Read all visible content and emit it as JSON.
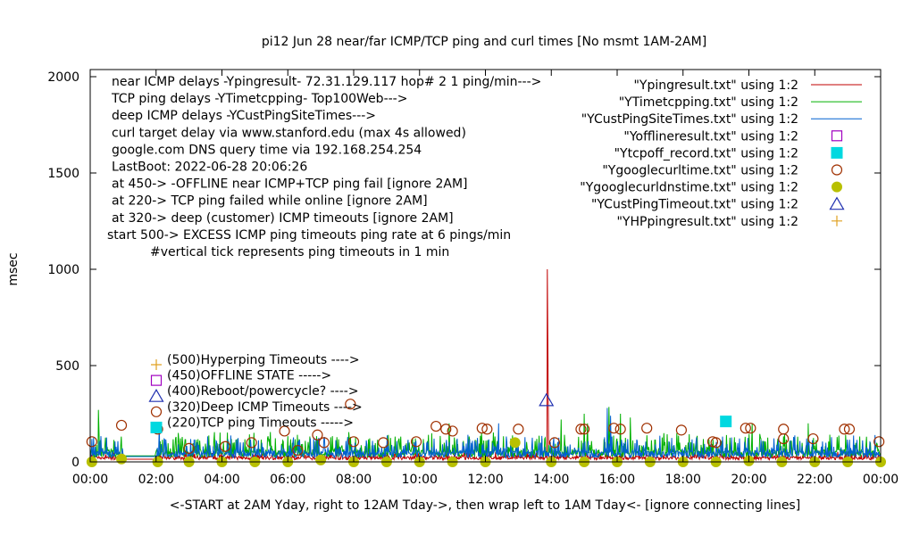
{
  "chart_data": {
    "type": "line",
    "title": "pi12 Jun 28  near/far ICMP/TCP ping and curl times [No msmt 1AM-2AM]",
    "xlabel": "<-START at 2AM Yday, right to 12AM Tday->, then wrap left to 1AM Tday<- [ignore connecting lines]",
    "ylabel": "msec",
    "x_ticks": [
      "00:00",
      "02:00",
      "04:00",
      "06:00",
      "08:00",
      "10:00",
      "12:00",
      "14:00",
      "16:00",
      "18:00",
      "20:00",
      "22:00",
      "00:00"
    ],
    "xlim_hours": [
      0,
      24
    ],
    "y_ticks": [
      0,
      500,
      1000,
      1500,
      2000
    ],
    "ylim": [
      0,
      2000
    ],
    "grid": false,
    "legend_position": "top-right",
    "info_lines": [
      "near ICMP delays -Ypingresult- 72.31.129.117 hop# 2  1 ping/min--->",
      "TCP ping delays -YTimetcpping- Top100Web--->",
      "deep ICMP delays -YCustPingSiteTimes--->",
      "curl target delay via www.stanford.edu (max 4s allowed)",
      "google.com DNS query time via 192.168.254.254",
      "LastBoot: 2022-06-28 20:06:26",
      "at 450-> -OFFLINE near ICMP+TCP ping fail [ignore 2AM]",
      "at 220-> TCP ping failed while online [ignore 2AM]",
      "at 320-> deep (customer) ICMP timeouts [ignore 2AM]",
      "start 500-> EXCESS ICMP ping timeouts ping rate at 6 pings/min",
      "#vertical tick represents ping timeouts in 1 min"
    ],
    "marker_legend": [
      {
        "label": "(500)Hyperping Timeouts ---->",
        "marker": "plus",
        "color": "#e0a020"
      },
      {
        "label": "(450)OFFLINE STATE ----->",
        "marker": "open-square",
        "color": "#a000c0"
      },
      {
        "label": "(400)Reboot/powercycle? ---->",
        "marker": "open-triangle",
        "color": "#2030b0"
      },
      {
        "label": "(320)Deep ICMP Timeouts ---->",
        "marker": "open-circle",
        "color": "#a03000"
      },
      {
        "label": "(220)TCP ping Timeouts ----->",
        "marker": "filled-square",
        "color": "#00d8e0"
      }
    ],
    "series": [
      {
        "name": "\"Ypingresult.txt\" using 1:2",
        "style": "line",
        "color": "#c00000",
        "baseline": 20,
        "noise": 15,
        "spikes": [
          {
            "x": 13.88,
            "y": 1000
          },
          {
            "x": 13.9,
            "y": 500
          }
        ]
      },
      {
        "name": "\"YTimetcpping.txt\" using 1:2",
        "style": "line",
        "color": "#00b000",
        "baseline": 45,
        "noise": 60,
        "spikes": [
          {
            "x": 0.25,
            "y": 270
          },
          {
            "x": 10.9,
            "y": 200
          },
          {
            "x": 14.3,
            "y": 220
          },
          {
            "x": 15.0,
            "y": 250
          },
          {
            "x": 15.1,
            "y": 200
          },
          {
            "x": 15.75,
            "y": 285
          },
          {
            "x": 16.1,
            "y": 250
          },
          {
            "x": 16.4,
            "y": 230
          },
          {
            "x": 20.1,
            "y": 200
          },
          {
            "x": 21.8,
            "y": 200
          }
        ]
      },
      {
        "name": "\"YCustPingSiteTimes.txt\" using 1:2",
        "style": "line",
        "color": "#0060d0",
        "baseline": 40,
        "noise": 55,
        "spikes": [
          {
            "x": 2.1,
            "y": 200
          },
          {
            "x": 12.4,
            "y": 200
          },
          {
            "x": 15.7,
            "y": 280
          },
          {
            "x": 15.8,
            "y": 240
          }
        ]
      },
      {
        "name": "\"Yofflineresult.txt\" using 1:2",
        "style": "open-square",
        "color": "#a000c0",
        "points": []
      },
      {
        "name": "\"Ytcpoff_record.txt\" using 1:2",
        "style": "filled-square",
        "color": "#00d8e0",
        "points": [
          {
            "x": 19.3,
            "y": 210
          }
        ]
      },
      {
        "name": "\"Ygooglecurltime.txt\" using 1:2",
        "style": "open-circle",
        "color": "#a03000",
        "points": [
          {
            "x": 0.05,
            "y": 105
          },
          {
            "x": 0.95,
            "y": 190
          },
          {
            "x": 2.05,
            "y": 170
          },
          {
            "x": 3.0,
            "y": 70
          },
          {
            "x": 4.1,
            "y": 80
          },
          {
            "x": 4.9,
            "y": 100
          },
          {
            "x": 5.9,
            "y": 160
          },
          {
            "x": 6.3,
            "y": 60
          },
          {
            "x": 6.9,
            "y": 140
          },
          {
            "x": 7.1,
            "y": 100
          },
          {
            "x": 7.9,
            "y": 300
          },
          {
            "x": 8.0,
            "y": 105
          },
          {
            "x": 8.9,
            "y": 100
          },
          {
            "x": 9.9,
            "y": 105
          },
          {
            "x": 10.5,
            "y": 185
          },
          {
            "x": 10.8,
            "y": 170
          },
          {
            "x": 11.0,
            "y": 160
          },
          {
            "x": 11.9,
            "y": 175
          },
          {
            "x": 12.05,
            "y": 170
          },
          {
            "x": 13.0,
            "y": 170
          },
          {
            "x": 14.1,
            "y": 100
          },
          {
            "x": 14.9,
            "y": 170
          },
          {
            "x": 15.0,
            "y": 170
          },
          {
            "x": 15.9,
            "y": 175
          },
          {
            "x": 16.1,
            "y": 170
          },
          {
            "x": 16.9,
            "y": 175
          },
          {
            "x": 17.95,
            "y": 165
          },
          {
            "x": 18.9,
            "y": 105
          },
          {
            "x": 19.0,
            "y": 100
          },
          {
            "x": 19.9,
            "y": 175
          },
          {
            "x": 20.05,
            "y": 175
          },
          {
            "x": 21.05,
            "y": 170
          },
          {
            "x": 21.05,
            "y": 120
          },
          {
            "x": 21.95,
            "y": 120
          },
          {
            "x": 22.9,
            "y": 170
          },
          {
            "x": 23.05,
            "y": 170
          },
          {
            "x": 23.95,
            "y": 105
          }
        ]
      },
      {
        "name": "\"Ygooglecurldnstime.txt\" using 1:2",
        "style": "filled-circle",
        "color": "#b8c000",
        "points": [
          {
            "x": 0.05,
            "y": 0
          },
          {
            "x": 0.95,
            "y": 15
          },
          {
            "x": 2.05,
            "y": 0
          },
          {
            "x": 3.0,
            "y": 0
          },
          {
            "x": 4.0,
            "y": 0
          },
          {
            "x": 5.0,
            "y": 0
          },
          {
            "x": 6.0,
            "y": 0
          },
          {
            "x": 7.0,
            "y": 10
          },
          {
            "x": 8.0,
            "y": 0
          },
          {
            "x": 9.0,
            "y": 0
          },
          {
            "x": 10.0,
            "y": 0
          },
          {
            "x": 11.0,
            "y": 0
          },
          {
            "x": 12.0,
            "y": 0
          },
          {
            "x": 12.9,
            "y": 100
          },
          {
            "x": 14.0,
            "y": 0
          },
          {
            "x": 15.0,
            "y": 0
          },
          {
            "x": 16.0,
            "y": 0
          },
          {
            "x": 17.0,
            "y": 0
          },
          {
            "x": 18.0,
            "y": 0
          },
          {
            "x": 19.0,
            "y": 0
          },
          {
            "x": 20.0,
            "y": 5
          },
          {
            "x": 21.0,
            "y": 0
          },
          {
            "x": 22.0,
            "y": 0
          },
          {
            "x": 23.0,
            "y": 0
          },
          {
            "x": 24.0,
            "y": 0
          }
        ]
      },
      {
        "name": "\"YCustPingTimeout.txt\" using 1:2",
        "style": "open-triangle",
        "color": "#2030b0",
        "points": [
          {
            "x": 13.85,
            "y": 320
          }
        ]
      },
      {
        "name": "\"YHPpingresult.txt\" using 1:2",
        "style": "plus",
        "color": "#e0a020",
        "points": []
      }
    ]
  }
}
